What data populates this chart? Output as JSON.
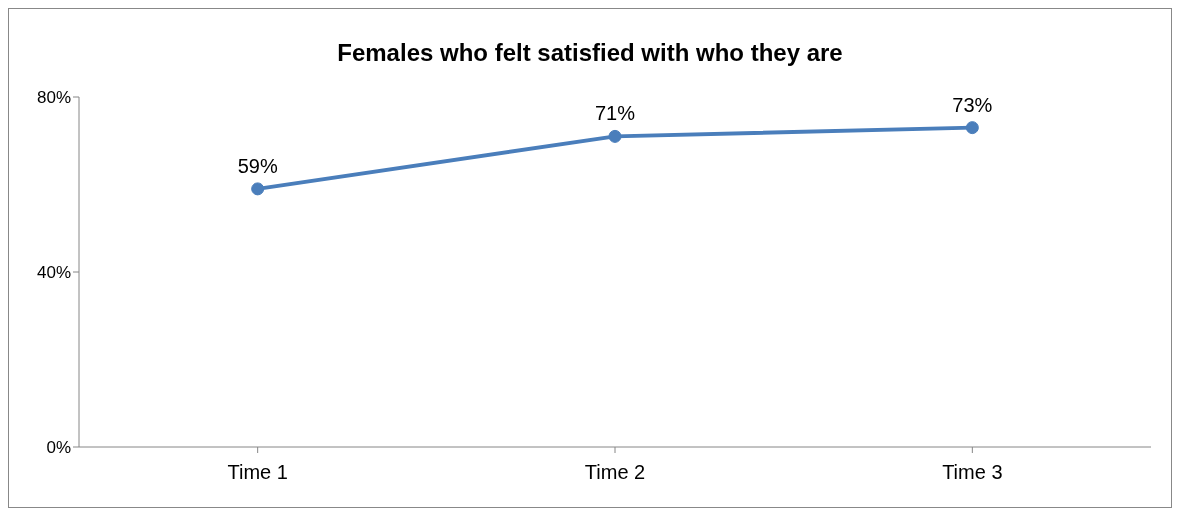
{
  "chart_data": {
    "type": "line",
    "title": "Females who felt satisfied with who they are",
    "categories": [
      "Time 1",
      "Time 2",
      "Time 3"
    ],
    "series": [
      {
        "color": "#4a7ebb",
        "values": [
          59,
          71,
          73
        ],
        "value_labels": [
          "59%",
          "71%",
          "73%"
        ]
      }
    ],
    "ylim": [
      0,
      80
    ],
    "yticks": [
      {
        "value": 0,
        "label": "0%"
      },
      {
        "value": 40,
        "label": "40%"
      },
      {
        "value": 80,
        "label": "80%"
      }
    ],
    "marker": "circle",
    "line_style": "solid"
  }
}
